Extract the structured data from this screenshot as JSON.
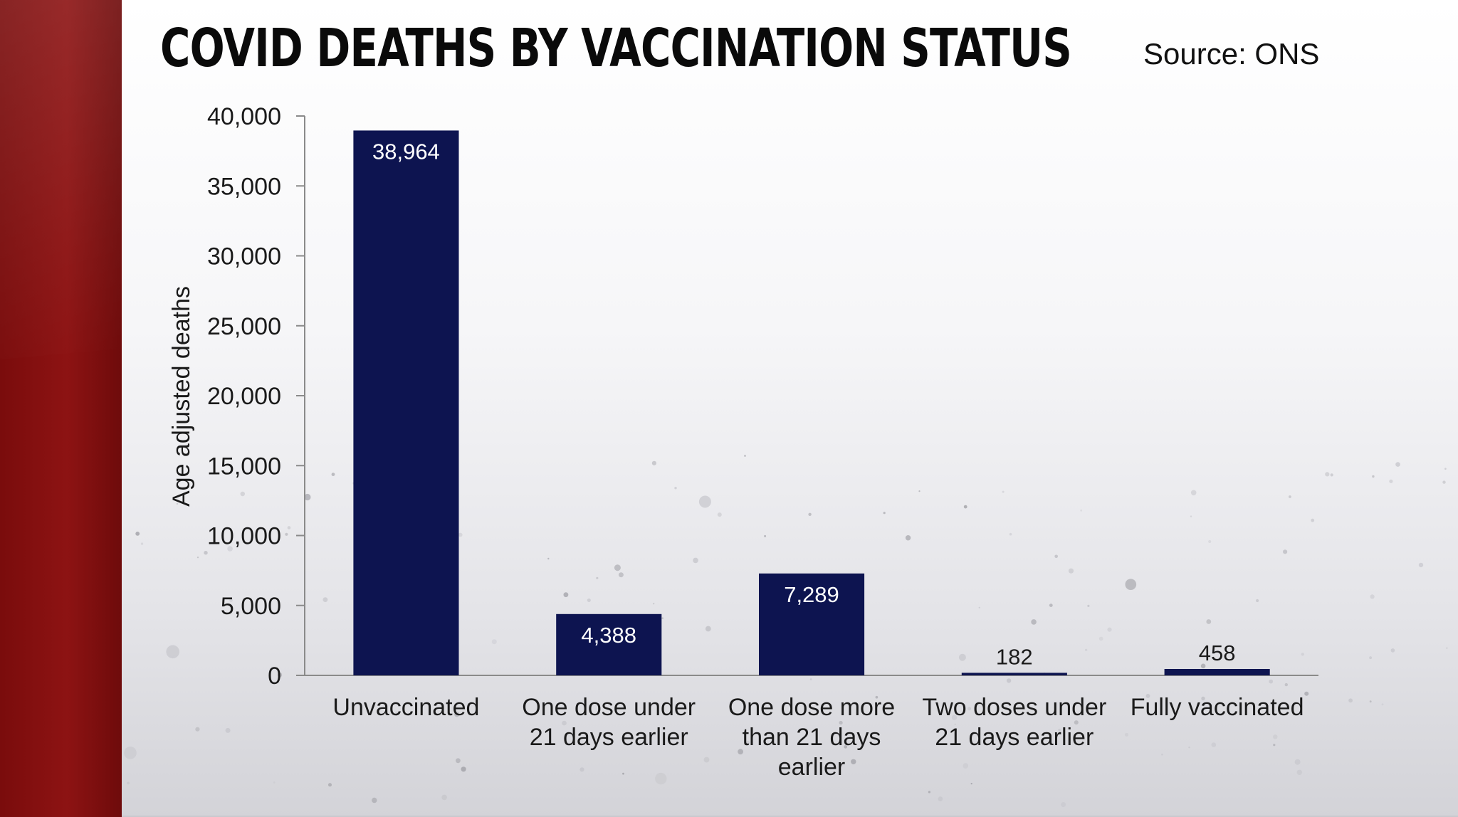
{
  "source": "Source: ONS",
  "colors": {
    "bar": "#0d1450",
    "value_label_inside": "#ffffff",
    "value_label_outside": "#1a1a1a",
    "axis": "#8a8a8a",
    "band": "#8d1313"
  },
  "chart_data": {
    "type": "bar",
    "title": "COVID DEATHS BY VACCINATION STATUS",
    "ylabel": "Age adjusted deaths",
    "xlabel": "",
    "ylim": [
      0,
      40000
    ],
    "yticks": [
      0,
      5000,
      10000,
      15000,
      20000,
      25000,
      30000,
      35000,
      40000
    ],
    "ytick_labels": [
      "0",
      "5,000",
      "10,000",
      "15,000",
      "20,000",
      "25,000",
      "30,000",
      "35,000",
      "40,000"
    ],
    "grid": false,
    "legend": "none",
    "categories": [
      [
        "Unvaccinated"
      ],
      [
        "One dose under",
        "21 days earlier"
      ],
      [
        "One dose more",
        "than 21 days",
        "earlier"
      ],
      [
        "Two doses under",
        "21 days earlier"
      ],
      [
        "Fully vaccinated"
      ]
    ],
    "values": [
      38964,
      4388,
      7289,
      182,
      458
    ],
    "value_labels": [
      "38,964",
      "4,388",
      "7,289",
      "182",
      "458"
    ]
  }
}
